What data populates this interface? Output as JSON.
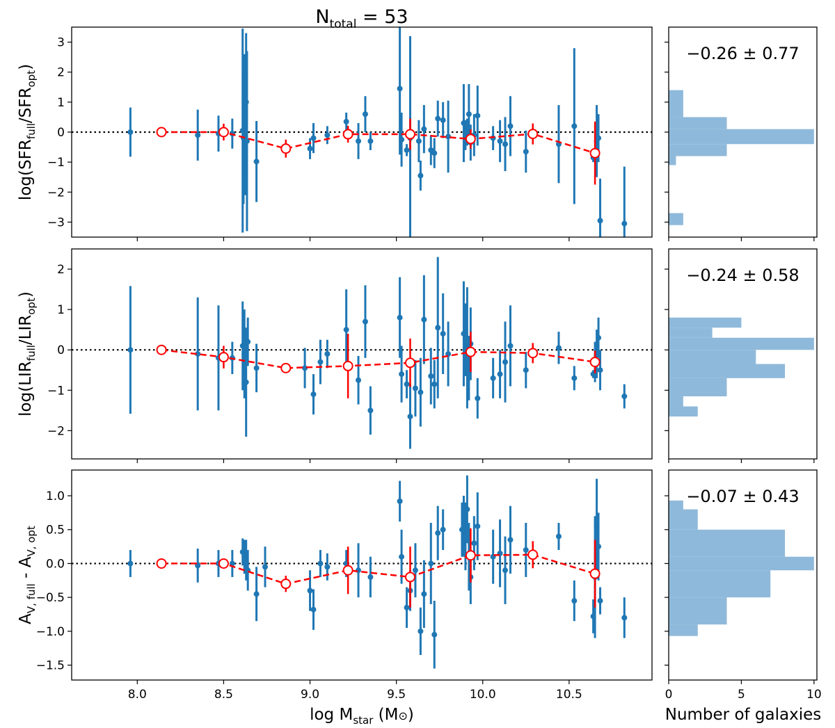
{
  "figure": {
    "title_main": "N",
    "title_sub": "total",
    "title_rest": " = 53",
    "xlabel_main": "log M",
    "xlabel_sub": "star",
    "xlabel_rest": " (M",
    "xlabel_sym": "⊙",
    "xlabel_close": ")",
    "hist_xlabel": "Number of galaxies"
  },
  "chart_data": [
    {
      "type": "scatter",
      "panel": "sfr",
      "ylabel_parts": [
        [
          "log(SFR",
          "n"
        ],
        [
          "full",
          "s"
        ],
        [
          "/SFR",
          "n"
        ],
        [
          "opt",
          "s"
        ],
        [
          ")",
          "n"
        ]
      ],
      "xlim": [
        7.62,
        10.98
      ],
      "ylim": [
        -3.5,
        3.5
      ],
      "yticks": [
        -3,
        -2,
        -1,
        0,
        1,
        2,
        3
      ],
      "ytick_labels": [
        "−3",
        "−2",
        "−1",
        "0",
        "1",
        "2",
        "3"
      ],
      "xticks": [
        8.0,
        8.5,
        9.0,
        9.5,
        10.0,
        10.5
      ],
      "xtick_labels": [
        "8.0",
        "8.5",
        "9.0",
        "9.5",
        "10.0",
        "10.5"
      ],
      "reference_line": 0,
      "points": [
        [
          7.96,
          0.0,
          0.82
        ],
        [
          8.35,
          -0.1,
          0.85
        ],
        [
          8.47,
          -0.05,
          0.6
        ],
        [
          8.55,
          -0.05,
          0.5
        ],
        [
          8.61,
          0.05,
          3.4
        ],
        [
          8.615,
          -0.2,
          2.2
        ],
        [
          8.62,
          0.8,
          1.8
        ],
        [
          8.625,
          -0.6,
          1.5
        ],
        [
          8.63,
          1.0,
          2.3
        ],
        [
          8.635,
          -0.3,
          3.0
        ],
        [
          8.69,
          -0.98,
          1.35
        ],
        [
          9.0,
          -0.55,
          0.35
        ],
        [
          9.02,
          -0.2,
          0.5
        ],
        [
          9.1,
          -0.1,
          0.3
        ],
        [
          9.21,
          0.35,
          0.3
        ],
        [
          9.28,
          -0.3,
          0.6
        ],
        [
          9.32,
          0.6,
          0.6
        ],
        [
          9.35,
          -0.3,
          0.3
        ],
        [
          9.52,
          1.45,
          2.2
        ],
        [
          9.53,
          -0.25,
          0.9
        ],
        [
          9.56,
          -0.6,
          0.2
        ],
        [
          9.58,
          -0.2,
          3.4
        ],
        [
          9.63,
          -0.3,
          0.7
        ],
        [
          9.64,
          -1.45,
          0.5
        ],
        [
          9.66,
          0.1,
          0.8
        ],
        [
          9.7,
          -0.6,
          0.5
        ],
        [
          9.72,
          -0.7,
          0.5
        ],
        [
          9.74,
          0.45,
          0.6
        ],
        [
          9.77,
          0.4,
          0.6
        ],
        [
          9.8,
          -0.15,
          1.2
        ],
        [
          9.89,
          0.3,
          1.3
        ],
        [
          9.9,
          -0.1,
          0.5
        ],
        [
          9.91,
          0.0,
          0.45
        ],
        [
          9.92,
          0.6,
          1.0
        ],
        [
          9.93,
          -0.35,
          0.6
        ],
        [
          9.95,
          -0.1,
          0.7
        ],
        [
          9.97,
          0.55,
          1.0
        ],
        [
          10.06,
          -0.2,
          0.4
        ],
        [
          10.1,
          -0.3,
          0.7
        ],
        [
          10.13,
          -0.4,
          0.9
        ],
        [
          10.16,
          0.2,
          1.0
        ],
        [
          10.25,
          -0.65,
          0.7
        ],
        [
          10.44,
          -0.4,
          1.3
        ],
        [
          10.53,
          0.2,
          2.6
        ],
        [
          10.64,
          -0.85,
          0.15
        ],
        [
          10.66,
          -0.3,
          1.2
        ],
        [
          10.67,
          -0.2,
          0.8
        ],
        [
          10.68,
          -2.95,
          1.4
        ],
        [
          10.82,
          -3.05,
          1.9
        ]
      ],
      "binned": [
        [
          8.14,
          0.0,
          0.0
        ],
        [
          8.5,
          0.0,
          0.28
        ],
        [
          8.86,
          -0.55,
          0.3
        ],
        [
          9.22,
          -0.07,
          0.28
        ],
        [
          9.58,
          -0.07,
          0.52
        ],
        [
          9.93,
          -0.23,
          0.32
        ],
        [
          10.29,
          -0.06,
          0.35
        ],
        [
          10.65,
          -0.7,
          1.05
        ]
      ],
      "hist": {
        "stat_label": "−0.26 ± 0.77",
        "xlim": [
          0,
          10.2
        ],
        "xticks": [
          0,
          5,
          10
        ],
        "xtick_labels": [
          "0",
          "5",
          "10"
        ],
        "bins": [
          [
            -3.5,
            -3.1,
            0
          ],
          [
            -3.1,
            -2.7,
            1
          ],
          [
            -2.7,
            -2.3,
            0
          ],
          [
            -2.3,
            -1.9,
            0
          ],
          [
            -1.9,
            -1.5,
            0
          ],
          [
            -1.5,
            -1.1,
            0
          ],
          [
            -1.1,
            -0.8,
            0.5
          ],
          [
            -0.8,
            -0.4,
            4
          ],
          [
            -0.4,
            0.1,
            10
          ],
          [
            0.1,
            0.5,
            4
          ],
          [
            0.5,
            1.4,
            1
          ]
        ]
      }
    },
    {
      "type": "scatter",
      "panel": "lir",
      "ylabel_parts": [
        [
          "log(LIR",
          "n"
        ],
        [
          "full",
          "s"
        ],
        [
          "/LIR",
          "n"
        ],
        [
          "opt",
          "s"
        ],
        [
          ")",
          "n"
        ]
      ],
      "xlim": [
        7.62,
        10.98
      ],
      "ylim": [
        -2.7,
        2.5
      ],
      "yticks": [
        -2,
        -1,
        0,
        1,
        2
      ],
      "ytick_labels": [
        "−2",
        "−1",
        "0",
        "1",
        "2"
      ],
      "xticks": [
        8.0,
        8.5,
        9.0,
        9.5,
        10.0,
        10.5
      ],
      "xtick_labels": [
        "8.0",
        "8.5",
        "9.0",
        "9.5",
        "10.0",
        "10.5"
      ],
      "reference_line": 0,
      "points": [
        [
          7.96,
          0.0,
          1.58
        ],
        [
          8.35,
          -0.1,
          1.4
        ],
        [
          8.47,
          -0.2,
          1.3
        ],
        [
          8.55,
          -0.2,
          0.4
        ],
        [
          8.61,
          0.1,
          1.1
        ],
        [
          8.62,
          -0.1,
          1.1
        ],
        [
          8.63,
          -0.8,
          1.35
        ],
        [
          8.64,
          0.2,
          0.6
        ],
        [
          8.69,
          -0.45,
          0.6
        ],
        [
          8.97,
          -0.45,
          0.5
        ],
        [
          9.02,
          -1.1,
          0.5
        ],
        [
          9.06,
          -0.3,
          0.55
        ],
        [
          9.1,
          -0.1,
          0.35
        ],
        [
          9.21,
          0.5,
          1.0
        ],
        [
          9.28,
          -0.75,
          0.6
        ],
        [
          9.32,
          0.7,
          0.9
        ],
        [
          9.35,
          -1.5,
          0.6
        ],
        [
          9.52,
          0.8,
          1.0
        ],
        [
          9.53,
          -0.6,
          0.7
        ],
        [
          9.56,
          -0.85,
          0.35
        ],
        [
          9.58,
          -1.65,
          0.8
        ],
        [
          9.61,
          -0.95,
          0.7
        ],
        [
          9.64,
          -1.05,
          0.85
        ],
        [
          9.66,
          0.75,
          1.1
        ],
        [
          9.7,
          -0.65,
          0.7
        ],
        [
          9.72,
          -0.85,
          0.6
        ],
        [
          9.74,
          0.55,
          1.75
        ],
        [
          9.77,
          0.4,
          1.0
        ],
        [
          9.8,
          -0.1,
          0.8
        ],
        [
          9.89,
          0.4,
          1.3
        ],
        [
          9.9,
          0.25,
          0.9
        ],
        [
          9.91,
          0.05,
          1.5
        ],
        [
          9.92,
          -0.45,
          0.8
        ],
        [
          9.93,
          0.15,
          0.9
        ],
        [
          9.97,
          -1.2,
          0.5
        ],
        [
          10.06,
          -0.7,
          0.5
        ],
        [
          10.1,
          -0.6,
          0.6
        ],
        [
          10.13,
          -0.3,
          1.0
        ],
        [
          10.16,
          0.1,
          1.0
        ],
        [
          10.25,
          -0.5,
          0.45
        ],
        [
          10.44,
          0.05,
          0.4
        ],
        [
          10.53,
          -0.7,
          0.3
        ],
        [
          10.64,
          -0.6,
          0.1
        ],
        [
          10.65,
          -0.3,
          0.5
        ],
        [
          10.66,
          -0.1,
          0.6
        ],
        [
          10.67,
          0.3,
          0.5
        ],
        [
          10.68,
          -0.5,
          0.5
        ],
        [
          10.82,
          -1.15,
          0.3
        ]
      ],
      "binned": [
        [
          8.14,
          0.0,
          0.0
        ],
        [
          8.5,
          -0.18,
          0.28
        ],
        [
          8.86,
          -0.45,
          0.1
        ],
        [
          9.22,
          -0.4,
          0.8
        ],
        [
          9.58,
          -0.32,
          0.6
        ],
        [
          9.93,
          -0.05,
          0.5
        ],
        [
          10.29,
          -0.08,
          0.25
        ],
        [
          10.65,
          -0.3,
          0.28
        ]
      ],
      "hist": {
        "stat_label": "−0.24 ± 0.58",
        "xlim": [
          0,
          10.2
        ],
        "xticks": [
          0,
          5,
          10
        ],
        "xtick_labels": [
          "0",
          "5",
          "10"
        ],
        "bins": [
          [
            -1.65,
            -1.4,
            2
          ],
          [
            -1.4,
            -1.15,
            1
          ],
          [
            -1.15,
            -0.7,
            4
          ],
          [
            -0.7,
            -0.35,
            8
          ],
          [
            -0.35,
            0.0,
            6
          ],
          [
            0.0,
            0.3,
            10
          ],
          [
            0.3,
            0.55,
            3
          ],
          [
            0.55,
            0.8,
            5
          ],
          [
            0.8,
            1.05,
            0
          ]
        ]
      }
    },
    {
      "type": "scatter",
      "panel": "av",
      "ylabel_parts": [
        [
          "A",
          "n"
        ],
        [
          "V, full",
          "s"
        ],
        [
          " - A",
          "n"
        ],
        [
          "V, opt",
          "s"
        ]
      ],
      "xlim": [
        7.62,
        10.98
      ],
      "ylim": [
        -1.72,
        1.38
      ],
      "yticks": [
        -1.5,
        -1.0,
        -0.5,
        0.0,
        0.5,
        1.0
      ],
      "ytick_labels": [
        "−1.5",
        "−1.0",
        "−0.5",
        "0.0",
        "0.5",
        "1.0"
      ],
      "xticks": [
        8.0,
        8.5,
        9.0,
        9.5,
        10.0,
        10.5
      ],
      "xtick_labels": [
        "8.0",
        "8.5",
        "9.0",
        "9.5",
        "10.0",
        "10.5"
      ],
      "reference_line": 0,
      "points": [
        [
          7.96,
          0.0,
          0.2
        ],
        [
          8.35,
          -0.03,
          0.25
        ],
        [
          8.47,
          0.0,
          0.2
        ],
        [
          8.55,
          0.0,
          0.2
        ],
        [
          8.61,
          0.17,
          0.2
        ],
        [
          8.62,
          0.1,
          0.25
        ],
        [
          8.63,
          0.05,
          0.3
        ],
        [
          8.64,
          -0.1,
          0.3
        ],
        [
          8.69,
          -0.45,
          0.4
        ],
        [
          8.74,
          -0.05,
          0.3
        ],
        [
          9.0,
          -0.4,
          0.3
        ],
        [
          9.02,
          -0.68,
          0.3
        ],
        [
          9.06,
          0.0,
          0.2
        ],
        [
          9.1,
          -0.05,
          0.2
        ],
        [
          9.21,
          0.0,
          0.2
        ],
        [
          9.28,
          -0.1,
          0.4
        ],
        [
          9.35,
          -0.2,
          0.3
        ],
        [
          9.52,
          0.92,
          0.3
        ],
        [
          9.53,
          0.1,
          0.4
        ],
        [
          9.56,
          -0.65,
          0.3
        ],
        [
          9.58,
          -0.4,
          0.3
        ],
        [
          9.61,
          -0.1,
          0.4
        ],
        [
          9.64,
          -1.0,
          0.35
        ],
        [
          9.66,
          -0.45,
          0.5
        ],
        [
          9.7,
          0.0,
          0.6
        ],
        [
          9.72,
          -1.05,
          0.5
        ],
        [
          9.74,
          0.45,
          0.4
        ],
        [
          9.77,
          0.5,
          0.3
        ],
        [
          9.88,
          0.5,
          0.4
        ],
        [
          9.89,
          0.55,
          0.45
        ],
        [
          9.9,
          0.4,
          0.5
        ],
        [
          9.91,
          0.8,
          0.5
        ],
        [
          9.92,
          0.1,
          0.5
        ],
        [
          9.93,
          -0.2,
          0.4
        ],
        [
          9.95,
          0.3,
          0.4
        ],
        [
          9.97,
          0.55,
          0.5
        ],
        [
          10.06,
          0.1,
          0.4
        ],
        [
          10.1,
          0.15,
          0.5
        ],
        [
          10.13,
          -0.1,
          0.5
        ],
        [
          10.16,
          0.35,
          0.5
        ],
        [
          10.25,
          0.2,
          0.4
        ],
        [
          10.44,
          0.4,
          0.2
        ],
        [
          10.53,
          -0.55,
          0.3
        ],
        [
          10.64,
          -0.78,
          0.25
        ],
        [
          10.65,
          -0.2,
          0.9
        ],
        [
          10.66,
          0.55,
          0.7
        ],
        [
          10.67,
          0.25,
          0.5
        ],
        [
          10.68,
          -0.55,
          0.2
        ],
        [
          10.82,
          -0.8,
          0.3
        ]
      ],
      "binned": [
        [
          8.14,
          0.0,
          0.0
        ],
        [
          8.5,
          0.0,
          0.05
        ],
        [
          8.86,
          -0.3,
          0.12
        ],
        [
          9.22,
          -0.1,
          0.35
        ],
        [
          9.58,
          -0.2,
          0.45
        ],
        [
          9.93,
          0.12,
          0.4
        ],
        [
          10.29,
          0.13,
          0.2
        ],
        [
          10.65,
          -0.15,
          0.5
        ]
      ],
      "hist": {
        "stat_label": "−0.07 ± 0.43",
        "xlim": [
          0,
          10.2
        ],
        "xticks": [
          0,
          5,
          10
        ],
        "xtick_labels": [
          "0",
          "5",
          "10"
        ],
        "bins": [
          [
            -1.07,
            -0.9,
            2
          ],
          [
            -0.9,
            -0.5,
            4
          ],
          [
            -0.5,
            -0.1,
            7
          ],
          [
            -0.1,
            0.1,
            10
          ],
          [
            0.1,
            0.5,
            8
          ],
          [
            0.5,
            0.8,
            2
          ],
          [
            0.8,
            0.93,
            1
          ]
        ]
      }
    }
  ]
}
